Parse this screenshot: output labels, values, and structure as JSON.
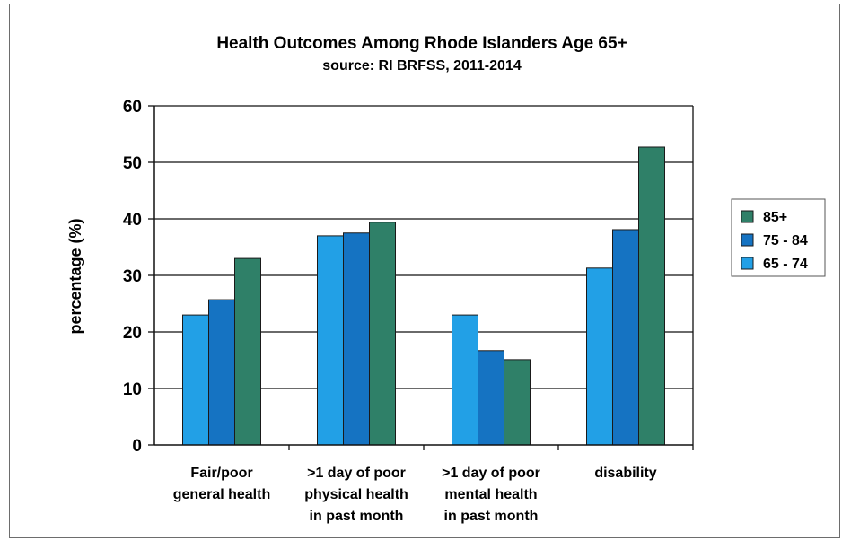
{
  "chart_data": {
    "type": "bar",
    "title": "Health Outcomes Among Rhode Islanders Age 65+",
    "subtitle": "source: RI BRFSS, 2011-2014",
    "xlabel": "",
    "ylabel": "percentage (%)",
    "ylim": [
      0,
      60
    ],
    "yticks": [
      0,
      10,
      20,
      30,
      40,
      50,
      60
    ],
    "grid": true,
    "legend_position": "right",
    "categories": [
      [
        "Fair/poor",
        "general health"
      ],
      [
        ">1 day of poor",
        "physical health",
        "in past month"
      ],
      [
        ">1 day of poor",
        "mental health",
        "in past month"
      ],
      [
        "disability"
      ]
    ],
    "series": [
      {
        "name": "65 - 74",
        "color": "#22a0e6",
        "values": [
          23,
          37,
          23,
          31.3
        ]
      },
      {
        "name": "75 - 84",
        "color": "#1573c2",
        "values": [
          25.7,
          37.5,
          16.7,
          38.1
        ]
      },
      {
        "name": "85+",
        "color": "#2f8068",
        "values": [
          33,
          39.4,
          15.1,
          52.7
        ]
      }
    ],
    "legend_order": [
      "85+",
      "75 - 84",
      "65 - 74"
    ]
  }
}
